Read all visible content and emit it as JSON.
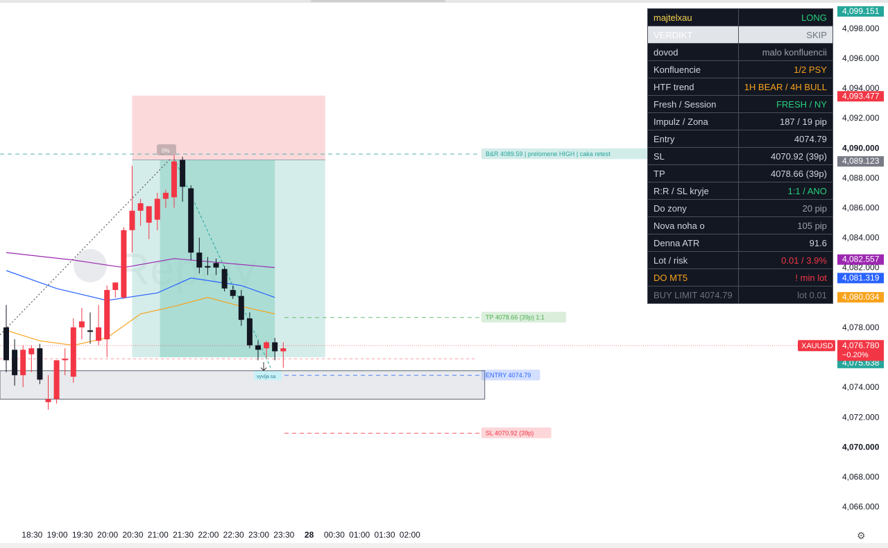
{
  "chart_data": {
    "type": "candlestick",
    "symbol": "XAUUSD",
    "ylim": [
      4065.1,
      4099.8
    ],
    "price_ticks": [
      "4,098.000",
      "4,096.000",
      "4,094.000",
      "4,092.000",
      "4,090.000",
      "4,088.000",
      "4,086.000",
      "4,084.000",
      "4,082.000",
      "4,078.000",
      "4,074.000",
      "4,072.000",
      "4,070.000",
      "4,068.000",
      "4,066.000"
    ],
    "price_tick_values": [
      4098,
      4096,
      4094,
      4092,
      4090,
      4088,
      4086,
      4084,
      4082,
      4078,
      4074,
      4072,
      4070,
      4068,
      4066
    ],
    "bold_ticks": [
      "4,090.000",
      "4,070.000"
    ],
    "time_ticks": [
      "18:30",
      "19:00",
      "19:30",
      "20:00",
      "20:30",
      "21:00",
      "21:30",
      "22:00",
      "22:30",
      "23:00",
      "23:30",
      "28",
      "00:30",
      "01:00",
      "01:30",
      "02:00"
    ],
    "bold_time_ticks": [
      "28"
    ],
    "time_tick_slots": [
      3,
      6,
      9,
      12,
      15,
      18,
      21,
      24,
      27,
      30,
      33,
      36,
      39,
      42,
      45,
      48
    ],
    "candles": [
      {
        "o": 4078.0,
        "h": 4079.5,
        "l": 4075.0,
        "c": 4075.8
      },
      {
        "o": 4076.5,
        "h": 4077.2,
        "l": 4074.1,
        "c": 4074.8
      },
      {
        "o": 4074.8,
        "h": 4076.8,
        "l": 4074.0,
        "c": 4076.5
      },
      {
        "o": 4076.2,
        "h": 4076.8,
        "l": 4075.0,
        "c": 4076.6
      },
      {
        "o": 4076.6,
        "h": 4076.9,
        "l": 4074.2,
        "c": 4074.5
      },
      {
        "o": 4073.0,
        "h": 4074.8,
        "l": 4072.5,
        "c": 4073.2
      },
      {
        "o": 4073.2,
        "h": 4075.8,
        "l": 4072.9,
        "c": 4075.8
      },
      {
        "o": 4075.8,
        "h": 4076.6,
        "l": 4074.8,
        "c": 4075.9
      },
      {
        "o": 4074.7,
        "h": 4078.6,
        "l": 4074.3,
        "c": 4078.0
      },
      {
        "o": 4078.0,
        "h": 4079.3,
        "l": 4077.2,
        "c": 4078.4
      },
      {
        "o": 4077.8,
        "h": 4079.0,
        "l": 4076.9,
        "c": 4077.7
      },
      {
        "o": 4077.1,
        "h": 4079.5,
        "l": 4076.8,
        "c": 4078.0
      },
      {
        "o": 4077.2,
        "h": 4080.8,
        "l": 4076.0,
        "c": 4080.5
      },
      {
        "o": 4080.5,
        "h": 4081.0,
        "l": 4080.0,
        "c": 4081.0
      },
      {
        "o": 4080.0,
        "h": 4084.7,
        "l": 4079.9,
        "c": 4084.5
      },
      {
        "o": 4084.5,
        "h": 4088.8,
        "l": 4083.0,
        "c": 4085.8
      },
      {
        "o": 4085.8,
        "h": 4086.6,
        "l": 4084.8,
        "c": 4086.3
      },
      {
        "o": 4085.0,
        "h": 4086.1,
        "l": 4083.9,
        "c": 4086.1
      },
      {
        "o": 4085.2,
        "h": 4087.0,
        "l": 4084.5,
        "c": 4086.6
      },
      {
        "o": 4086.6,
        "h": 4087.2,
        "l": 4086.0,
        "c": 4087.0
      },
      {
        "o": 4086.7,
        "h": 4089.5,
        "l": 4086.0,
        "c": 4089.1
      },
      {
        "o": 4089.2,
        "h": 4089.4,
        "l": 4086.4,
        "c": 4087.4
      },
      {
        "o": 4087.3,
        "h": 4087.5,
        "l": 4082.5,
        "c": 4083.0
      },
      {
        "o": 4083.0,
        "h": 4084.0,
        "l": 4081.6,
        "c": 4082.0
      },
      {
        "o": 4082.1,
        "h": 4082.7,
        "l": 4081.5,
        "c": 4082.0
      },
      {
        "o": 4082.3,
        "h": 4082.6,
        "l": 4081.5,
        "c": 4082.0
      },
      {
        "o": 4081.9,
        "h": 4082.1,
        "l": 4080.4,
        "c": 4080.6
      },
      {
        "o": 4080.5,
        "h": 4080.8,
        "l": 4079.9,
        "c": 4080.1
      },
      {
        "o": 4080.1,
        "h": 4080.5,
        "l": 4078.1,
        "c": 4078.5
      },
      {
        "o": 4078.6,
        "h": 4079.0,
        "l": 4076.6,
        "c": 4076.8
      },
      {
        "o": 4076.8,
        "h": 4077.1,
        "l": 4075.8,
        "c": 4076.5
      },
      {
        "o": 4076.6,
        "h": 4077.1,
        "l": 4076.0,
        "c": 4077.0
      },
      {
        "o": 4077.0,
        "h": 4077.3,
        "l": 4075.8,
        "c": 4076.4
      },
      {
        "o": 4076.4,
        "h": 4077.0,
        "l": 4075.3,
        "c": 4076.6
      }
    ],
    "candle_first_slot": 0,
    "moving_averages": [
      {
        "color": "#9c27b0",
        "values": [
          [
            0,
            4083.0
          ],
          [
            8,
            4082.5
          ],
          [
            14,
            4082.0
          ],
          [
            20,
            4082.6
          ],
          [
            26,
            4082.3
          ],
          [
            32,
            4082.0
          ]
        ]
      },
      {
        "color": "#2962ff",
        "values": [
          [
            0,
            4081.8
          ],
          [
            6,
            4080.6
          ],
          [
            12,
            4079.8
          ],
          [
            18,
            4080.3
          ],
          [
            22,
            4081.3
          ],
          [
            28,
            4080.8
          ],
          [
            32,
            4080.0
          ]
        ]
      },
      {
        "color": "#f7a21b",
        "values": [
          [
            0,
            4077.8
          ],
          [
            4,
            4077.1
          ],
          [
            8,
            4076.8
          ],
          [
            12,
            4077.3
          ],
          [
            16,
            4078.9
          ],
          [
            20,
            4079.4
          ],
          [
            24,
            4080.0
          ],
          [
            28,
            4079.4
          ],
          [
            32,
            4078.9
          ]
        ]
      }
    ],
    "position_box": {
      "slot_start": 15,
      "slot_end": 38,
      "filled_end": 32,
      "entry": 4089.2,
      "stop": 4093.5,
      "target": 4076.0
    },
    "zone_box": {
      "slot_end": 57,
      "top": 4075.1,
      "bottom": 4073.2
    },
    "levels": [
      {
        "label": "B&R 4089.59 | prelomene HIGH | caka retest",
        "price": 4089.59,
        "color": "#26a69a",
        "style": "dashed"
      },
      {
        "label": "TP 4078.66 (39p) 1:1",
        "price": 4078.66,
        "color": "#4caf50",
        "style": "dashed"
      },
      {
        "label": "ENTRY 4074.79",
        "price": 4074.79,
        "color": "#2962ff",
        "style": "dashed"
      },
      {
        "label": "SL 4070.92 (39p)",
        "price": 4070.92,
        "color": "#f23645",
        "style": "dashed"
      }
    ],
    "price_labels": [
      {
        "text": "4,099.151",
        "value": 4099.151,
        "bg": "#26a69a"
      },
      {
        "text": "4,093.477",
        "value": 4093.477,
        "bg": "#f23645"
      },
      {
        "text": "4,089.123",
        "value": 4089.123,
        "bg": "#787b86"
      },
      {
        "text": "4,082.557",
        "value": 4082.557,
        "bg": "#9c27b0"
      },
      {
        "text": "4,081.319",
        "value": 4081.319,
        "bg": "#2962ff"
      },
      {
        "text": "4,080.034",
        "value": 4080.034,
        "bg": "#f7a21b"
      },
      {
        "text": "4,075.638",
        "value": 4075.638,
        "bg": "#26a69a"
      }
    ],
    "current_price": {
      "symbol": "XAUUSD",
      "price": "4,076.780",
      "change": "−0.20%",
      "value": 4076.78
    },
    "watermark": "Replay",
    "percent_tag": "0%",
    "cursor_tag": "vyvíja sa"
  },
  "info_table": [
    {
      "k": "majtelxau",
      "v": "LONG",
      "kc": "#f5d34f",
      "vc": "#26d07c",
      "style": "dark"
    },
    {
      "k": "VERDIKT",
      "v": "SKIP",
      "kc": "#ffffff",
      "vc": "#6b7280",
      "style": "light"
    },
    {
      "k": "dovod",
      "v": "malo konfluencii",
      "kc": "#d1d4dc",
      "vc": "#9aa0aa",
      "style": "dark"
    },
    {
      "k": "Konfluencie",
      "v": "1/2  PSY",
      "kc": "#d1d4dc",
      "vc": "#f7a21b",
      "style": "dark"
    },
    {
      "k": "HTF trend",
      "v": "1H BEAR / 4H BULL",
      "kc": "#d1d4dc",
      "vc": "#f7a21b",
      "style": "dark"
    },
    {
      "k": "Fresh / Session",
      "v": "FRESH / NY",
      "kc": "#d1d4dc",
      "vc": "#26d07c",
      "style": "dark"
    },
    {
      "k": "Impulz / Zona",
      "v": "187 / 19 pip",
      "kc": "#d1d4dc",
      "vc": "#d1d4dc",
      "style": "dark"
    },
    {
      "k": "Entry",
      "v": "4074.79",
      "kc": "#d1d4dc",
      "vc": "#d1d4dc",
      "style": "dark"
    },
    {
      "k": "SL",
      "v": "4070.92 (39p)",
      "kc": "#d1d4dc",
      "vc": "#d1d4dc",
      "style": "dark"
    },
    {
      "k": "TP",
      "v": "4078.66 (39p)",
      "kc": "#d1d4dc",
      "vc": "#d1d4dc",
      "style": "dark"
    },
    {
      "k": "R:R / SL kryje",
      "v": "1:1 / ANO",
      "kc": "#d1d4dc",
      "vc": "#26d07c",
      "style": "dark"
    },
    {
      "k": "Do zony",
      "v": "20 pip",
      "kc": "#d1d4dc",
      "vc": "#9aa0aa",
      "style": "dark"
    },
    {
      "k": "Nova noha o",
      "v": "105 pip",
      "kc": "#d1d4dc",
      "vc": "#9aa0aa",
      "style": "dark"
    },
    {
      "k": "Denna ATR",
      "v": "91.6",
      "kc": "#d1d4dc",
      "vc": "#d1d4dc",
      "style": "dark"
    },
    {
      "k": "Lot / risk",
      "v": "0.01 / 3.9%",
      "kc": "#d1d4dc",
      "vc": "#f23645",
      "style": "dark"
    },
    {
      "k": "DO MT5",
      "v": "! min lot",
      "kc": "#f7a21b",
      "vc": "#f23645",
      "style": "dark"
    },
    {
      "k": "BUY LIMIT 4074.79",
      "v": "lot 0.01",
      "kc": "#6b7280",
      "vc": "#6b7280",
      "style": "muted"
    }
  ],
  "colors": {
    "up": "#f23645",
    "down": "#131722",
    "grid_text": "#131722"
  },
  "settings_icon": "gear-icon"
}
